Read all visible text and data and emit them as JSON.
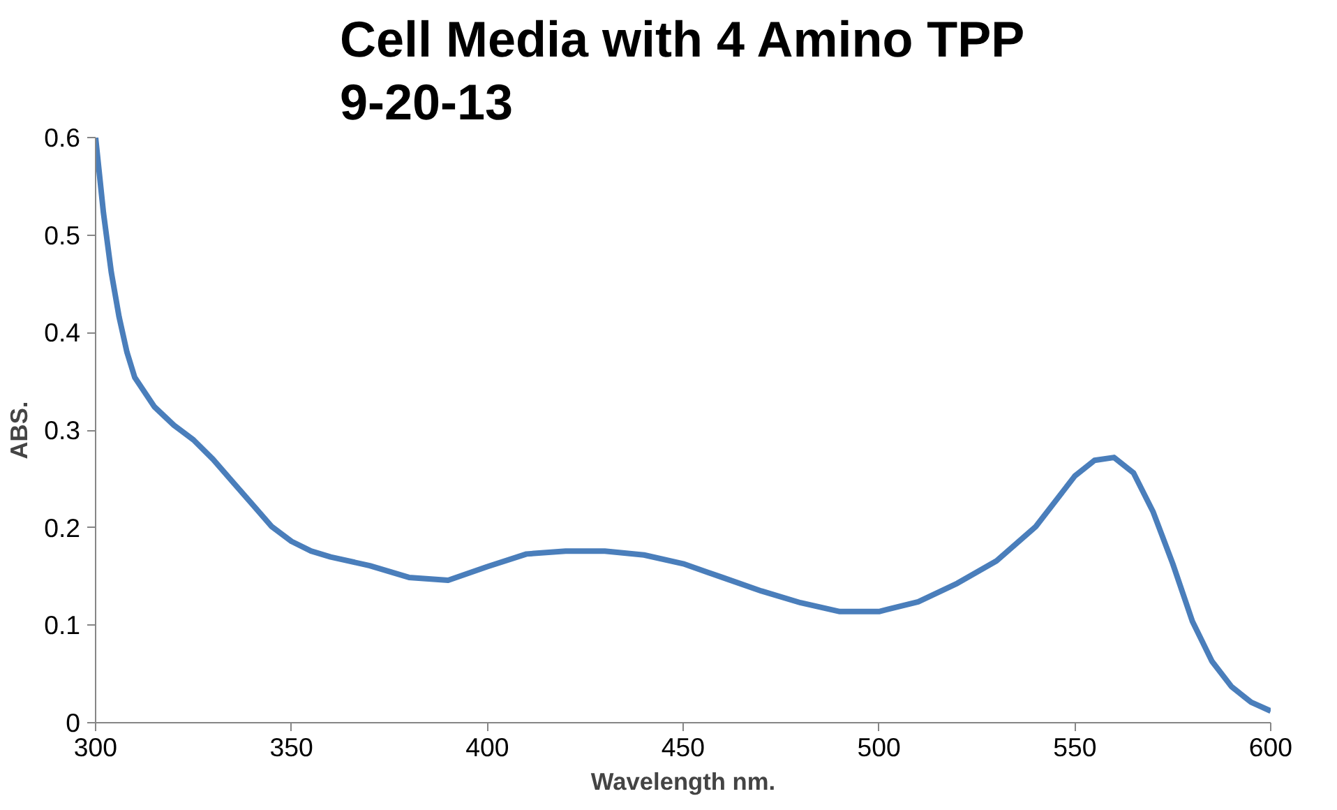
{
  "chart_data": {
    "type": "line",
    "title": "Cell Media with 4 Amino TPP\n9-20-13",
    "xlabel": "Wavelength nm.",
    "ylabel": "ABS.",
    "xlim": [
      300,
      600
    ],
    "xticks": [
      300,
      350,
      400,
      450,
      500,
      550,
      600
    ],
    "ylim": [
      0,
      0.6
    ],
    "yticks": [
      0,
      0.1,
      0.2,
      0.3,
      0.4,
      0.5,
      0.6
    ],
    "grid": false,
    "marker": "none",
    "line_style": "solid",
    "series": [
      {
        "color": "#4a7ebb",
        "x": [
          300,
          302,
          304,
          306,
          308,
          310,
          315,
          320,
          325,
          330,
          335,
          340,
          345,
          350,
          355,
          360,
          370,
          380,
          390,
          400,
          410,
          420,
          430,
          440,
          450,
          460,
          470,
          480,
          490,
          500,
          510,
          520,
          530,
          540,
          550,
          555,
          560,
          565,
          570,
          575,
          580,
          585,
          590,
          595,
          600
        ],
        "values": [
          0.6,
          0.523,
          0.462,
          0.416,
          0.38,
          0.354,
          0.324,
          0.305,
          0.29,
          0.27,
          0.247,
          0.224,
          0.201,
          0.186,
          0.176,
          0.17,
          0.161,
          0.149,
          0.146,
          0.16,
          0.173,
          0.176,
          0.176,
          0.172,
          0.163,
          0.149,
          0.135,
          0.123,
          0.114,
          0.114,
          0.124,
          0.143,
          0.166,
          0.201,
          0.253,
          0.269,
          0.272,
          0.256,
          0.216,
          0.163,
          0.104,
          0.063,
          0.037,
          0.021,
          0.012
        ]
      }
    ]
  }
}
